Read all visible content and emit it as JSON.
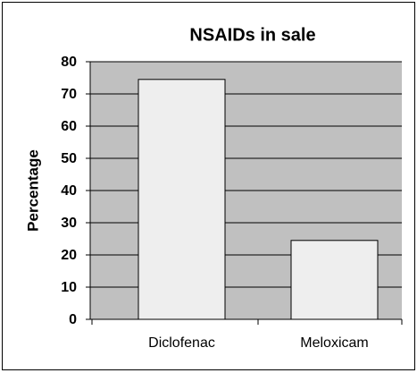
{
  "chart_data": {
    "type": "bar",
    "title": "NSAIDs in sale",
    "ylabel": "Percentage",
    "categories": [
      "Diclofenac",
      "Meloxicam"
    ],
    "values": [
      74.5,
      24.5
    ],
    "color": "#eeeeee",
    "background": "#c0c0c0",
    "ylim": [
      0,
      80
    ],
    "yticks": [
      0,
      10,
      20,
      30,
      40,
      50,
      60,
      70,
      80
    ],
    "grid": true
  }
}
